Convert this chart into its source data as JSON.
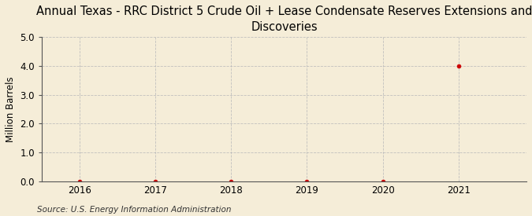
{
  "title": "Annual Texas - RRC District 5 Crude Oil + Lease Condensate Reserves Extensions and\nDiscoveries",
  "ylabel": "Million Barrels",
  "source": "Source: U.S. Energy Information Administration",
  "x_values": [
    2016,
    2017,
    2018,
    2019,
    2020,
    2021
  ],
  "y_values": [
    0.0,
    0.0,
    0.0,
    0.0,
    0.0,
    4.0
  ],
  "xlim": [
    2015.5,
    2021.9
  ],
  "ylim": [
    0.0,
    5.0
  ],
  "yticks": [
    0.0,
    1.0,
    2.0,
    3.0,
    4.0,
    5.0
  ],
  "xticks": [
    2016,
    2017,
    2018,
    2019,
    2020,
    2021
  ],
  "marker_color": "#cc0000",
  "marker_size": 3.5,
  "background_color": "#f5edd8",
  "grid_color": "#bbbbbb",
  "title_fontsize": 10.5,
  "label_fontsize": 8.5,
  "tick_fontsize": 8.5,
  "source_fontsize": 7.5
}
